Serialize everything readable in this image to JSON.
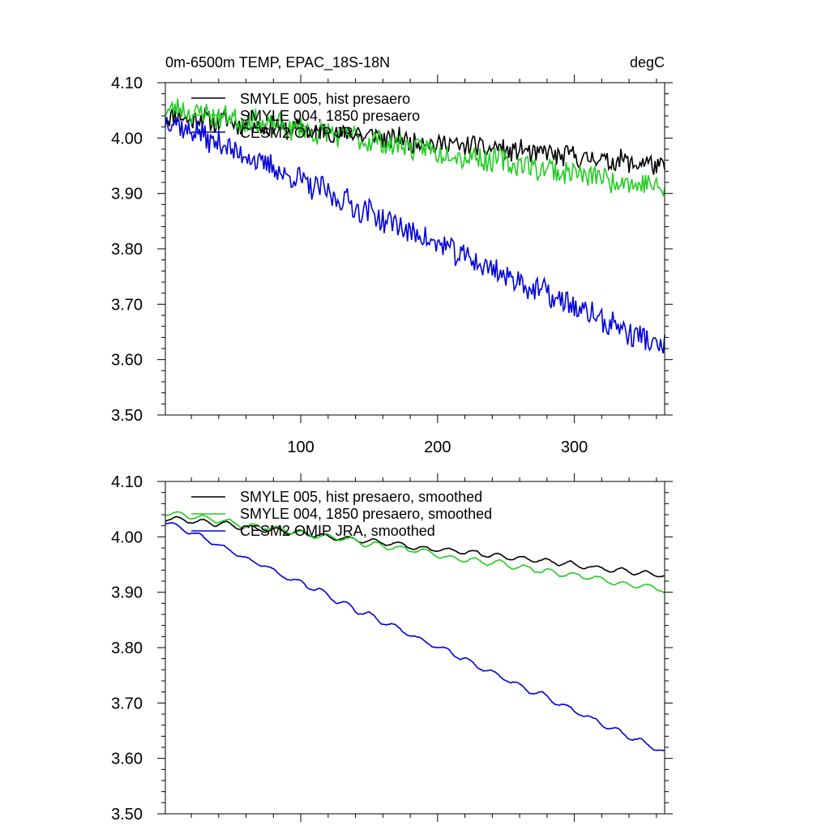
{
  "chart_data": [
    {
      "type": "line",
      "title": "0m-6500m TEMP, EPAC_18S-18N",
      "units": "degC",
      "xlim": [
        1,
        366
      ],
      "ylim": [
        3.5,
        4.1
      ],
      "xticks": [
        100,
        200,
        300
      ],
      "xtick_labels": [
        "100",
        "200",
        "300"
      ],
      "yticks": [
        3.5,
        3.6,
        3.7,
        3.8,
        3.9,
        4.0,
        4.1
      ],
      "ytick_labels": [
        "3.50",
        "3.60",
        "3.70",
        "3.80",
        "3.90",
        "4.00",
        "4.10"
      ],
      "legend_position": "top-left",
      "series": [
        {
          "name": "SMYLE 005, hist presaero",
          "color": "#000000",
          "start": 4.04,
          "end": 3.95,
          "noise": 0.018,
          "seed": 11
        },
        {
          "name": "SMYLE 004, 1850 presaero",
          "color": "#22cc22",
          "start": 4.055,
          "end": 3.91,
          "noise": 0.02,
          "seed": 23
        },
        {
          "name": "CESM2 OMIP JRA",
          "color": "#0000dd",
          "start": 4.035,
          "end": 3.62,
          "noise": 0.022,
          "seed": 37
        }
      ]
    },
    {
      "type": "line",
      "title": "",
      "units": "",
      "xlim": [
        1,
        366
      ],
      "ylim": [
        3.5,
        4.1
      ],
      "xticks": [
        100,
        200,
        300
      ],
      "xtick_labels": [
        "",
        "",
        ""
      ],
      "yticks": [
        3.5,
        3.6,
        3.7,
        3.8,
        3.9,
        4.0,
        4.1
      ],
      "ytick_labels": [
        "3.50",
        "3.60",
        "3.70",
        "3.80",
        "3.90",
        "4.00",
        "4.10"
      ],
      "legend_position": "top-left",
      "series": [
        {
          "name": "SMYLE 005, hist presaero, smoothed",
          "color": "#000000",
          "start": 4.035,
          "end": 3.93,
          "noise": 0.006,
          "seed": 11
        },
        {
          "name": "SMYLE 004, 1850 presaero, smoothed",
          "color": "#22cc22",
          "start": 4.045,
          "end": 3.905,
          "noise": 0.007,
          "seed": 23
        },
        {
          "name": "CESM2 OMIP JRA, smoothed",
          "color": "#0000dd",
          "start": 4.03,
          "end": 3.61,
          "noise": 0.008,
          "seed": 37
        }
      ]
    }
  ]
}
